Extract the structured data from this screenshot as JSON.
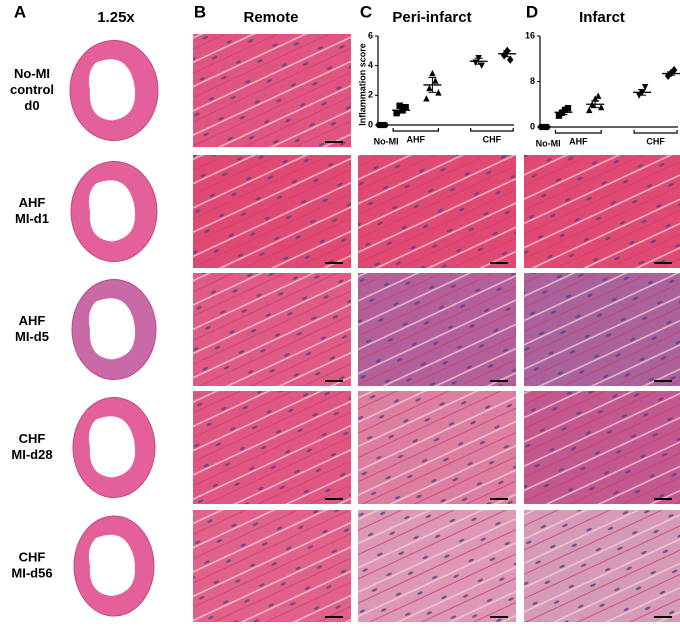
{
  "panel_letters": [
    "A",
    "B",
    "C",
    "D"
  ],
  "magnification": "1.25x",
  "column_titles": [
    "Remote",
    "Peri-infarct",
    "Infarct"
  ],
  "row_labels": [
    [
      "No-MI",
      "control",
      "d0"
    ],
    [
      "AHF",
      "MI-d1"
    ],
    [
      "AHF",
      "MI-d5"
    ],
    [
      "CHF",
      "MI-d28"
    ],
    [
      "CHF",
      "MI-d56"
    ]
  ],
  "chart_data": [
    {
      "type": "scatter",
      "ylabel": "Inflammation score",
      "ylim": [
        0,
        6
      ],
      "yticks": [
        0,
        2,
        4,
        6
      ],
      "group_labels": [
        "No-MI",
        "AHF",
        "CHF"
      ],
      "series": [
        {
          "marker": "circle",
          "values": [
            0,
            0,
            0
          ],
          "mean": 0,
          "error": 0
        },
        {
          "marker": "square",
          "values": [
            0.8,
            1.3,
            1.0,
            1.2
          ],
          "mean": 1.0,
          "error": 0.2
        },
        {
          "marker": "triangle",
          "values": [
            1.8,
            2.5,
            3.5,
            3.0,
            2.2
          ],
          "mean": 2.7,
          "error": 0.5
        },
        {
          "marker": "triangle-down",
          "values": [
            4.2,
            4.5,
            4.0
          ],
          "mean": 4.3,
          "error": 0.2
        },
        {
          "marker": "diamond",
          "values": [
            4.7,
            5.0,
            4.4
          ],
          "mean": 4.8,
          "error": 0.2
        }
      ]
    },
    {
      "type": "scatter",
      "ylim": [
        0,
        16
      ],
      "yticks": [
        0,
        8,
        16
      ],
      "group_labels": [
        "No-MI",
        "AHF",
        "CHF"
      ],
      "series": [
        {
          "marker": "circle",
          "values": [
            0,
            0,
            0
          ],
          "mean": 0,
          "error": 0
        },
        {
          "marker": "square",
          "values": [
            2.0,
            2.5,
            3.0,
            3.3
          ],
          "mean": 2.6,
          "error": 0.4
        },
        {
          "marker": "triangle",
          "values": [
            3.0,
            4.0,
            5.0,
            5.5,
            3.5
          ],
          "mean": 4.0,
          "error": 0.6
        },
        {
          "marker": "triangle-down",
          "values": [
            5.5,
            6.0,
            7.0
          ],
          "mean": 6.1,
          "error": 0.5
        },
        {
          "marker": "diamond",
          "values": [
            9.0,
            9.5,
            10.0
          ],
          "mean": 9.4,
          "error": 0.3
        }
      ]
    }
  ]
}
